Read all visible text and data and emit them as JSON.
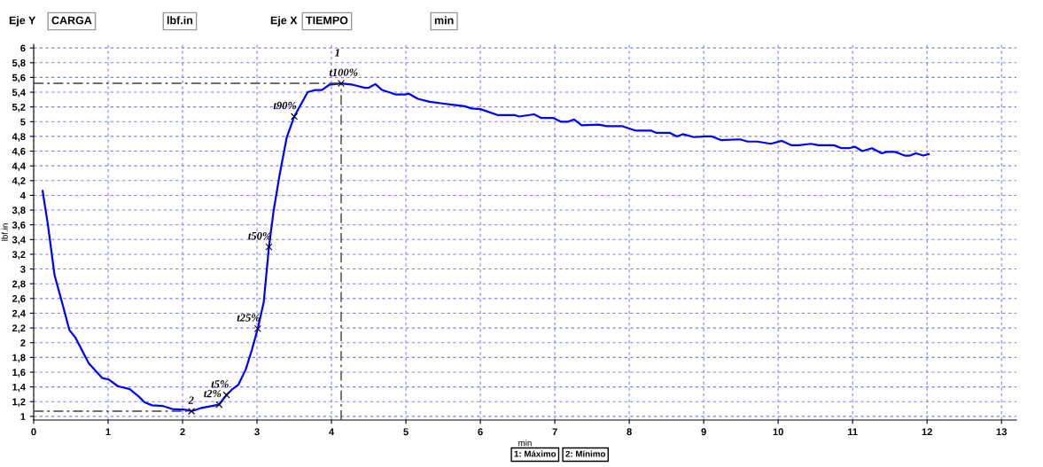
{
  "chart_data": {
    "type": "line",
    "xlabel": "min",
    "ylabel": "lbf.in",
    "xlim": [
      0,
      13.2
    ],
    "ylim": [
      0.95,
      6.05
    ],
    "xticks": [
      0,
      1,
      2,
      3,
      4,
      5,
      6,
      7,
      8,
      9,
      10,
      11,
      12,
      13
    ],
    "yticks": [
      1,
      {
        "value": 1.2,
        "label": "1,2"
      },
      {
        "value": 1.4,
        "label": "1,4"
      },
      {
        "value": 1.6,
        "label": "1,6"
      },
      {
        "value": 1.8,
        "label": "1,8"
      },
      2,
      {
        "value": 2.2,
        "label": "2,2"
      },
      {
        "value": 2.4,
        "label": "2,4"
      },
      {
        "value": 2.6,
        "label": "2,6"
      },
      {
        "value": 2.8,
        "label": "2,8"
      },
      3,
      {
        "value": 3.2,
        "label": "3,2"
      },
      {
        "value": 3.4,
        "label": "3,4"
      },
      {
        "value": 3.6,
        "label": "3,6"
      },
      {
        "value": 3.8,
        "label": "3,8"
      },
      4,
      {
        "value": 4.2,
        "label": "4,2"
      },
      {
        "value": 4.4,
        "label": "4,4"
      },
      {
        "value": 4.6,
        "label": "4,6"
      },
      {
        "value": 4.8,
        "label": "4,8"
      },
      5,
      {
        "value": 5.2,
        "label": "5,2"
      },
      {
        "value": 5.4,
        "label": "5,4"
      },
      {
        "value": 5.6,
        "label": "5,6"
      },
      {
        "value": 5.8,
        "label": "5,8"
      },
      6
    ],
    "grid": true,
    "legend": false,
    "series": [
      {
        "color": "#0000ff",
        "line_style": "solid",
        "marker": "none",
        "x": [
          0.12,
          0.19,
          0.28,
          0.38,
          0.48,
          0.56,
          0.74,
          0.92,
          1.01,
          1.13,
          1.29,
          1.41,
          1.49,
          1.59,
          1.74,
          1.86,
          2.04,
          2.12,
          2.24,
          2.49,
          2.59,
          2.67,
          2.75,
          2.85,
          2.93,
          3.01,
          3.09,
          3.16,
          3.22,
          3.3,
          3.4,
          3.5,
          3.68,
          3.78,
          3.87,
          3.97,
          4.13,
          4.29,
          4.45,
          4.5,
          4.59,
          4.68,
          4.86,
          5.0,
          5.04,
          5.16,
          5.32,
          5.47,
          5.79,
          5.88,
          6.0,
          6.23,
          6.46,
          6.52,
          6.72,
          6.82,
          6.98,
          7.08,
          7.18,
          7.26,
          7.36,
          7.59,
          7.7,
          7.9,
          8.08,
          8.29,
          8.36,
          8.54,
          8.64,
          8.72,
          8.87,
          9.03,
          9.11,
          9.23,
          9.49,
          9.59,
          9.72,
          9.9,
          10.05,
          10.18,
          10.28,
          10.44,
          10.54,
          10.75,
          10.85,
          10.95,
          11.03,
          11.13,
          11.26,
          11.39,
          11.46,
          11.57,
          11.7,
          11.77,
          11.85,
          11.95,
          12.02
        ],
        "values": [
          4.06,
          3.61,
          2.92,
          2.55,
          2.17,
          2.07,
          1.72,
          1.52,
          1.5,
          1.41,
          1.37,
          1.27,
          1.19,
          1.15,
          1.14,
          1.1,
          1.09,
          1.07,
          1.11,
          1.16,
          1.29,
          1.37,
          1.43,
          1.64,
          1.9,
          2.19,
          2.55,
          3.3,
          3.77,
          4.26,
          4.79,
          5.07,
          5.4,
          5.43,
          5.43,
          5.5,
          5.52,
          5.5,
          5.46,
          5.46,
          5.51,
          5.43,
          5.37,
          5.37,
          5.38,
          5.31,
          5.27,
          5.25,
          5.21,
          5.18,
          5.17,
          5.09,
          5.09,
          5.07,
          5.1,
          5.05,
          5.05,
          5.0,
          5.0,
          5.03,
          4.95,
          4.96,
          4.94,
          4.94,
          4.88,
          4.88,
          4.85,
          4.85,
          4.8,
          4.83,
          4.79,
          4.8,
          4.8,
          4.75,
          4.76,
          4.73,
          4.73,
          4.7,
          4.74,
          4.68,
          4.68,
          4.7,
          4.68,
          4.68,
          4.64,
          4.64,
          4.66,
          4.6,
          4.64,
          4.57,
          4.59,
          4.59,
          4.54,
          4.54,
          4.57,
          4.54,
          4.56
        ]
      },
      {
        "type": "scatter",
        "color": "#000000",
        "marker": "cross",
        "x": [
          2.12,
          2.49,
          2.59,
          3.01,
          3.16,
          3.5,
          4.13
        ],
        "values": [
          1.07,
          1.16,
          1.29,
          2.19,
          3.3,
          5.07,
          5.52
        ]
      },
      {
        "type": "line",
        "color": "#404040",
        "line_style": "dashed",
        "marker": "none",
        "x": [
          0,
          4.13
        ],
        "values": [
          5.52,
          5.52
        ]
      },
      {
        "type": "line",
        "color": "#404040",
        "line_style": "dashed",
        "marker": "none",
        "x": [
          4.13,
          4.13
        ],
        "values": [
          0.95,
          5.52
        ]
      },
      {
        "type": "line",
        "color": "#404040",
        "line_style": "dashed",
        "marker": "none",
        "x": [
          0,
          2.12
        ],
        "values": [
          1.07,
          1.07
        ]
      }
    ],
    "annotations": [
      "Eje Y",
      "CARGA",
      "lbf.in",
      "Eje X",
      "TIEMPO",
      "min",
      {
        "text": "t100%",
        "x": 4.13,
        "y": 5.52
      },
      {
        "text": "1",
        "x": 4.13,
        "y": 5.52
      },
      {
        "text": "t90%",
        "x": 3.5,
        "y": 5.07
      },
      {
        "text": "t50%",
        "x": 3.16,
        "y": 3.3
      },
      {
        "text": "t25%",
        "x": 3.01,
        "y": 2.19
      },
      {
        "text": "t5%",
        "x": 2.59,
        "y": 1.29
      },
      {
        "text": "t2%",
        "x": 2.49,
        "y": 1.16
      },
      {
        "text": "2",
        "x": 2.12,
        "y": 1.07
      },
      "1: Máximo",
      "2: Mínimo"
    ]
  }
}
